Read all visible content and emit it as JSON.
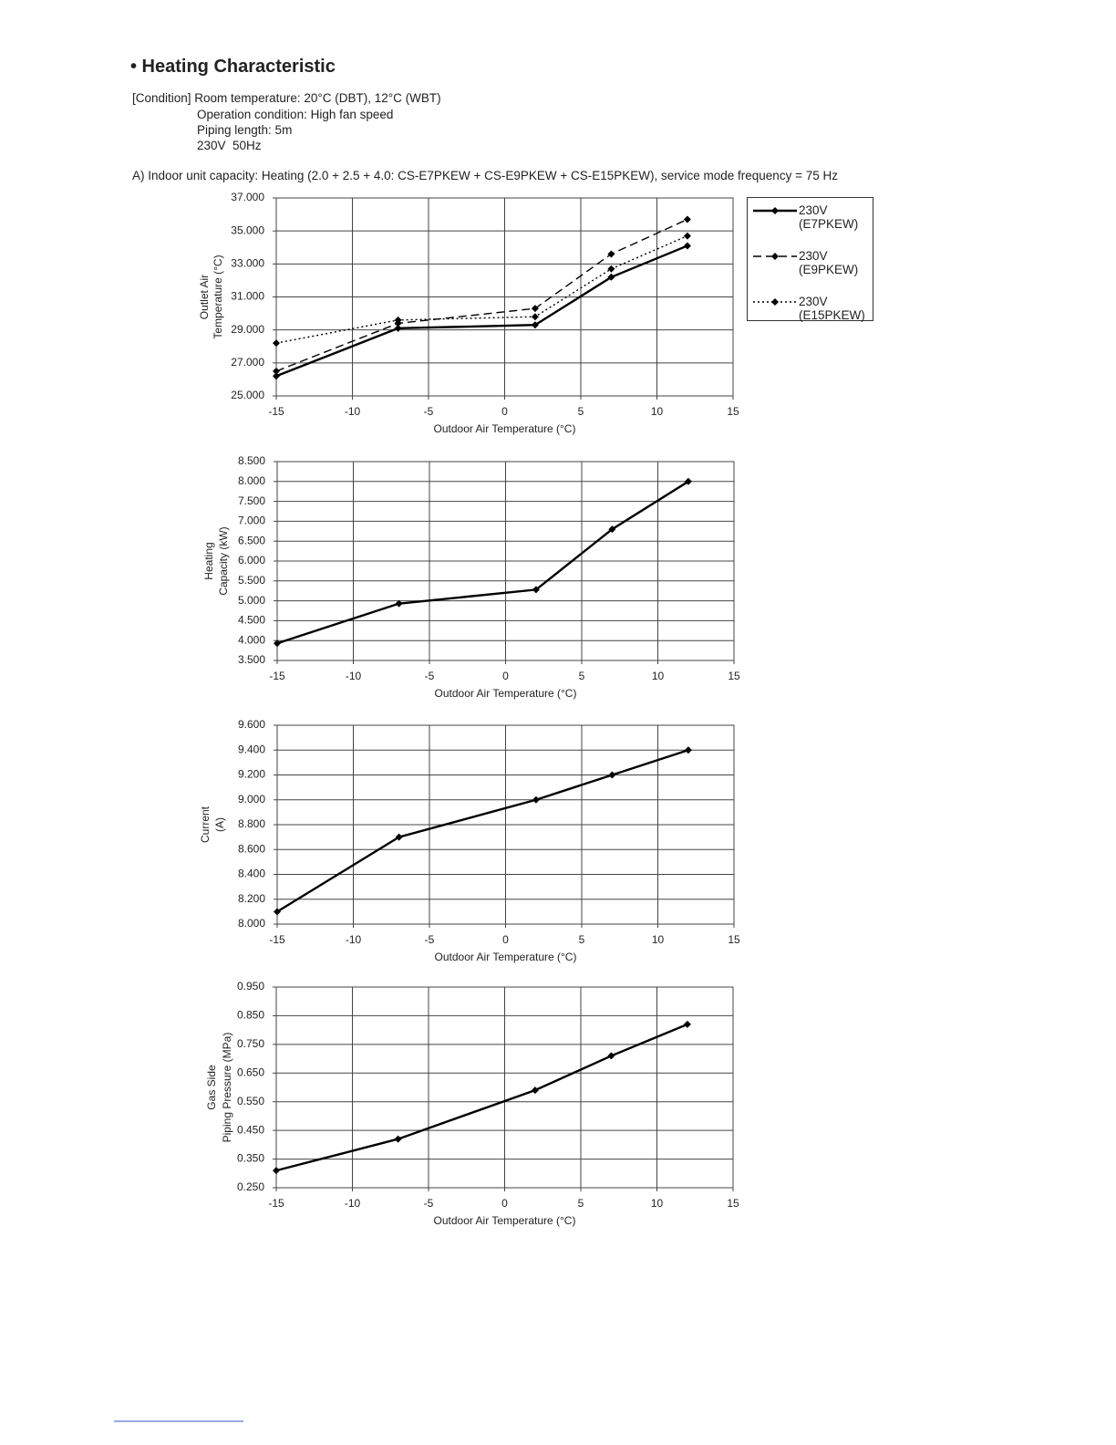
{
  "header": {
    "title": "• Heating Characteristic",
    "condition": [
      "[Condition] Room temperature: 20°C (DBT), 12°C (WBT)",
      "Operation condition: High fan speed",
      "Piping length: 5m",
      "230V  50Hz"
    ],
    "section": "A) Indoor unit capacity: Heating (2.0 + 2.5 + 4.0: CS-E7PKEW + CS-E9PKEW + CS-E15PKEW), service mode frequency = 75 Hz"
  },
  "chart_data": [
    {
      "type": "line",
      "x_label": "Outdoor Air Temperature (°C)",
      "y_label": [
        "Outlet Air",
        "Temperature (°C)"
      ],
      "x": [
        -15,
        -7,
        2,
        7,
        12
      ],
      "series": [
        {
          "name": "230V (E7PKEW)",
          "color": "#000000",
          "dash": "solid",
          "values": [
            26.2,
            29.1,
            29.3,
            32.2,
            34.1
          ]
        },
        {
          "name": "230V (E9PKEW)",
          "color": "#000000",
          "dash": "dashed",
          "values": [
            26.5,
            29.4,
            30.3,
            33.6,
            35.7
          ]
        },
        {
          "name": "230V (E15PKEW)",
          "color": "#000000",
          "dash": "dotted",
          "values": [
            28.2,
            29.6,
            29.8,
            32.7,
            34.7
          ]
        }
      ],
      "xlim": [
        -15,
        15
      ],
      "xticks": [
        -15,
        -10,
        -5,
        0,
        5,
        10,
        15
      ],
      "ylim": [
        25,
        37
      ],
      "yticks": [
        {
          "value": 25,
          "label": "25.000"
        },
        {
          "value": 27,
          "label": "27.000"
        },
        {
          "value": 29,
          "label": "29.000"
        },
        {
          "value": 31,
          "label": "31.000"
        },
        {
          "value": 33,
          "label": "33.000"
        },
        {
          "value": 35,
          "label": "35.000"
        },
        {
          "value": 37,
          "label": "37.000"
        }
      ],
      "grid": true,
      "legend": "right"
    },
    {
      "type": "line",
      "x_label": "Outdoor Air Temperature (°C)",
      "y_label": [
        "Heating",
        "Capacity (kW)"
      ],
      "x": [
        -15,
        -7,
        2,
        7,
        12
      ],
      "values": [
        3.93,
        4.93,
        5.28,
        6.8,
        8.0
      ],
      "color": "#000000",
      "xlim": [
        -15,
        15
      ],
      "xticks": [
        -15,
        -10,
        -5,
        0,
        5,
        10,
        15
      ],
      "ylim": [
        3.5,
        8.5
      ],
      "yticks": [
        {
          "value": 3.5,
          "label": "3.500"
        },
        {
          "value": 4,
          "label": "4.000"
        },
        {
          "value": 4.5,
          "label": "4.500"
        },
        {
          "value": 5,
          "label": "5.000"
        },
        {
          "value": 5.5,
          "label": "5.500"
        },
        {
          "value": 6,
          "label": "6.000"
        },
        {
          "value": 6.5,
          "label": "6.500"
        },
        {
          "value": 7,
          "label": "7.000"
        },
        {
          "value": 7.5,
          "label": "7.500"
        },
        {
          "value": 8,
          "label": "8.000"
        },
        {
          "value": 8.5,
          "label": "8.500"
        }
      ],
      "grid": true
    },
    {
      "type": "line",
      "x_label": "Outdoor Air Temperature (°C)",
      "y_label": [
        "Current",
        "(A)"
      ],
      "x": [
        -15,
        -7,
        2,
        7,
        12
      ],
      "values": [
        8.1,
        8.7,
        9.0,
        9.2,
        9.4
      ],
      "color": "#000000",
      "xlim": [
        -15,
        15
      ],
      "xticks": [
        -15,
        -10,
        -5,
        0,
        5,
        10,
        15
      ],
      "ylim": [
        8.0,
        9.6
      ],
      "yticks": [
        {
          "value": 8.0,
          "label": "8.000"
        },
        {
          "value": 8.2,
          "label": "8.200"
        },
        {
          "value": 8.4,
          "label": "8.400"
        },
        {
          "value": 8.6,
          "label": "8.600"
        },
        {
          "value": 8.8,
          "label": "8.800"
        },
        {
          "value": 9.0,
          "label": "9.000"
        },
        {
          "value": 9.2,
          "label": "9.200"
        },
        {
          "value": 9.4,
          "label": "9.400"
        },
        {
          "value": 9.6,
          "label": "9.600"
        }
      ],
      "grid": true
    },
    {
      "type": "line",
      "x_label": "Outdoor Air Temperature (°C)",
      "y_label": [
        "Gas Side",
        "Piping Pressure (MPa)"
      ],
      "x": [
        -15,
        -7,
        2,
        7,
        12
      ],
      "values": [
        0.31,
        0.42,
        0.59,
        0.71,
        0.82
      ],
      "color": "#000000",
      "xlim": [
        -15,
        15
      ],
      "xticks": [
        -15,
        -10,
        -5,
        0,
        5,
        10,
        15
      ],
      "ylim": [
        0.25,
        0.95
      ],
      "yticks": [
        {
          "value": 0.25,
          "label": "0.250"
        },
        {
          "value": 0.35,
          "label": "0.350"
        },
        {
          "value": 0.45,
          "label": "0.450"
        },
        {
          "value": 0.55,
          "label": "0.550"
        },
        {
          "value": 0.65,
          "label": "0.650"
        },
        {
          "value": 0.75,
          "label": "0.750"
        },
        {
          "value": 0.85,
          "label": "0.850"
        },
        {
          "value": 0.95,
          "label": "0.950"
        }
      ],
      "grid": true
    }
  ]
}
